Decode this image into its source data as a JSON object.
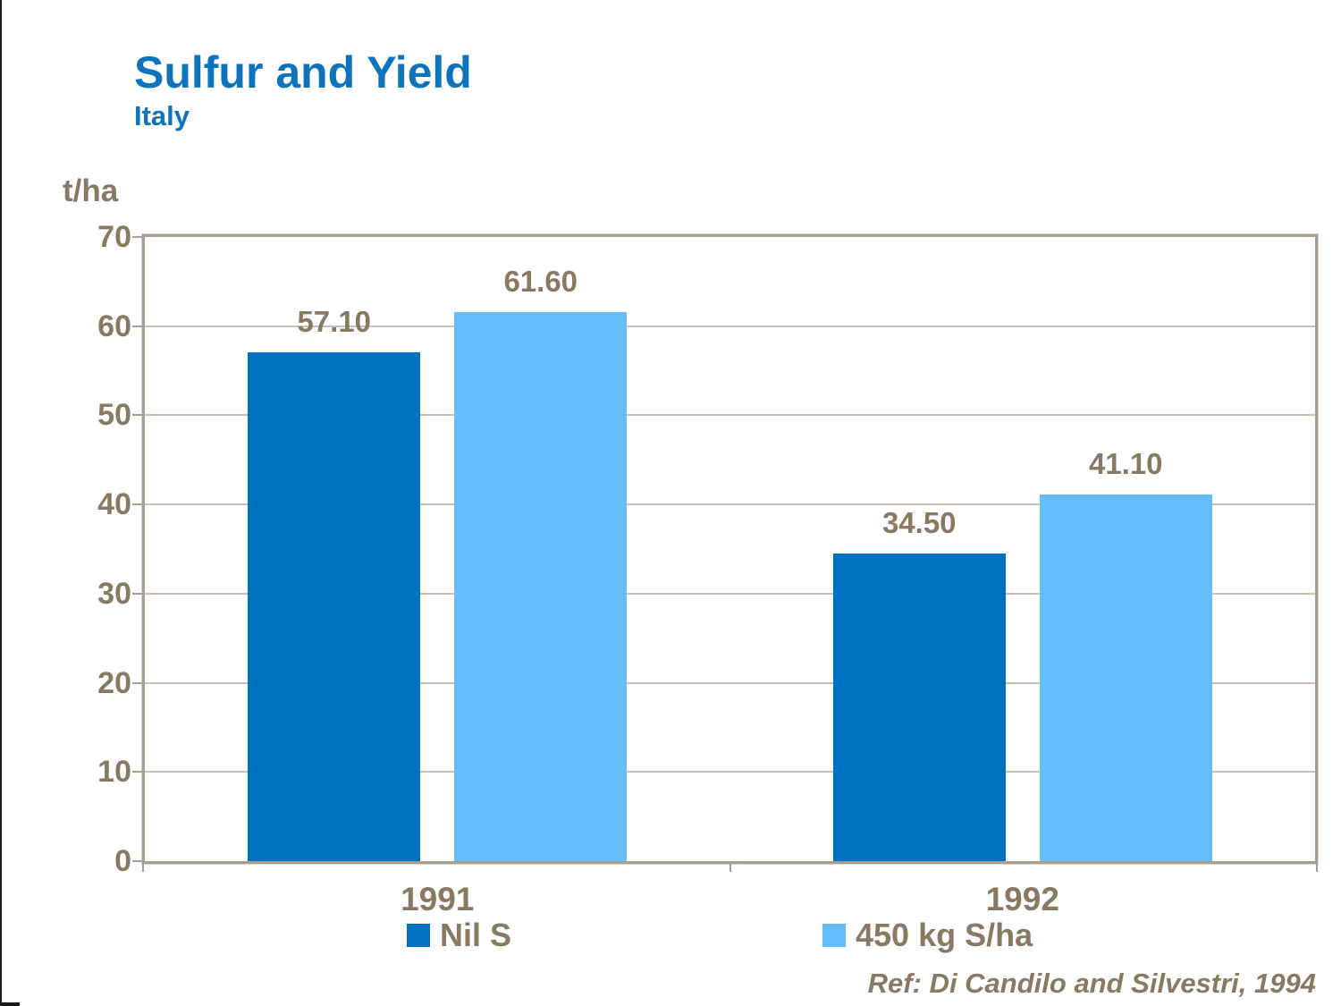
{
  "header": {
    "title": "Sulfur and Yield",
    "subtitle": "Italy"
  },
  "axis": {
    "unit_label": "t/ha"
  },
  "chart_data": {
    "type": "bar",
    "title": "Sulfur and Yield",
    "subtitle": "Italy",
    "categories": [
      "1991",
      "1992"
    ],
    "series": [
      {
        "name": "Nil S",
        "color": "#0071c1",
        "values": [
          57.1,
          34.5
        ],
        "labels": [
          "57.10",
          "34.50"
        ]
      },
      {
        "name": "450 kg S/ha",
        "color": "#66bdfb",
        "values": [
          61.6,
          41.1
        ],
        "labels": [
          "61.60",
          "41.10"
        ]
      }
    ],
    "ylabel": "t/ha",
    "ylim": [
      0,
      70
    ],
    "yticks": [
      0,
      10,
      20,
      30,
      40,
      50,
      60,
      70
    ],
    "grid": "horizontal",
    "legend_position": "bottom"
  },
  "footer": {
    "reference": "Ref: Di Candilo and Silvestri, 1994"
  },
  "colors": {
    "title_blue": "#0d73bd",
    "text_brown": "#8a7962",
    "frame_tan": "#a89d8f",
    "gridline": "#c9c0b2",
    "series_dark_blue": "#0071c1",
    "series_light_blue": "#66bdfb"
  }
}
